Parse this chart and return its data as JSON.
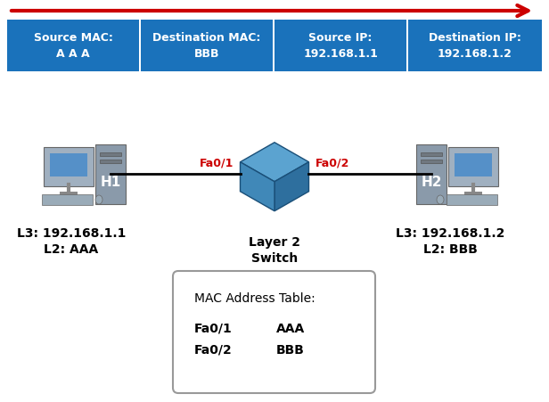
{
  "bg_color": "#ffffff",
  "arrow_color": "#cc0000",
  "header_box_color": "#1a72bb",
  "header_text_color": "#ffffff",
  "header_labels": [
    "Source MAC:\nA A A",
    "Destination MAC:\nBBB",
    "Source IP:\n192.168.1.1",
    "Destination IP:\n192.168.1.2"
  ],
  "h1_label": "H1",
  "h2_label": "H2",
  "h1_ip": "L3: 192.168.1.1",
  "h1_mac": "L2: AAA",
  "h2_ip": "L3: 192.168.1.2",
  "h2_mac": "L2: BBB",
  "switch_label1": "Layer 2",
  "switch_label2": "Switch",
  "fa01_label": "Fa0/1",
  "fa02_label": "Fa0/2",
  "mac_table_title": "MAC Address Table:",
  "mac_table_rows": [
    [
      "Fa0/1",
      "AAA"
    ],
    [
      "Fa0/2",
      "BBB"
    ]
  ],
  "line_color": "#000000",
  "port_label_color": "#cc0000",
  "text_color": "#000000",
  "node_label_color": "#ffffff",
  "switch_top_color": "#5ba3d0",
  "switch_right_color": "#2e6f9e",
  "switch_left_color": "#4088b8",
  "switch_edge_color": "#1a4f78"
}
